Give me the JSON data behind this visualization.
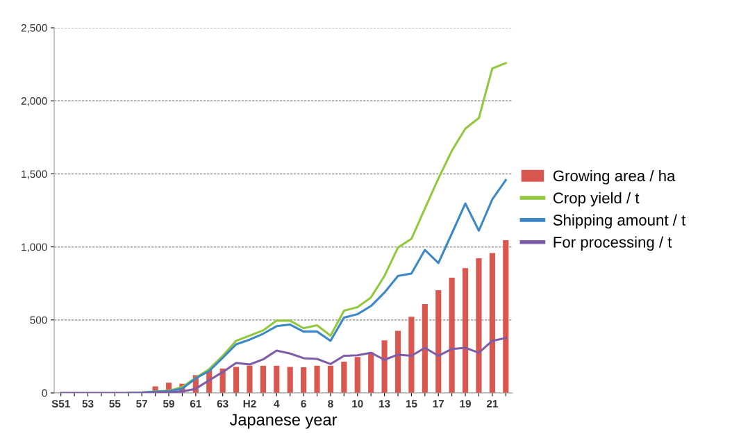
{
  "chart_data": {
    "type": "bar",
    "xlabel": "Japanese year",
    "categories": [
      "S51",
      null,
      "53",
      null,
      "55",
      null,
      "57",
      null,
      "59",
      null,
      "61",
      null,
      "63",
      null,
      "H2",
      null,
      "4",
      null,
      "6",
      null,
      "8",
      null,
      "10",
      null,
      "13",
      null,
      "15",
      null,
      "17",
      null,
      "19",
      null,
      "21",
      null
    ],
    "series": [
      {
        "name": "Growing area / ha",
        "color": "#d9574f",
        "values": [
          0,
          0,
          0,
          0,
          0,
          0,
          5,
          45,
          70,
          63,
          122,
          157,
          167,
          178,
          187,
          186,
          186,
          178,
          176,
          186,
          186,
          214,
          246,
          278,
          360,
          425,
          522,
          608,
          703,
          789,
          854,
          922,
          958,
          1046
        ]
      },
      {
        "name": "Crop yield / t",
        "type": "line",
        "color": "#92c83e",
        "values": [
          null,
          null,
          null,
          null,
          null,
          0,
          3,
          10,
          15,
          40,
          103,
          163,
          254,
          357,
          392,
          428,
          495,
          495,
          443,
          463,
          392,
          563,
          587,
          654,
          801,
          995,
          1055,
          1262,
          1468,
          1658,
          1810,
          1882,
          2222,
          2258
        ]
      },
      {
        "name": "Shipping amount / t",
        "type": "line",
        "color": "#3b87c8",
        "values": [
          null,
          null,
          null,
          null,
          null,
          0,
          2,
          8,
          12,
          30,
          100,
          150,
          240,
          333,
          365,
          405,
          457,
          468,
          420,
          420,
          357,
          516,
          539,
          595,
          687,
          801,
          817,
          979,
          889,
          1092,
          1297,
          1111,
          1325,
          1457
        ]
      },
      {
        "name": "For processing / t",
        "type": "line",
        "color": "#7e5ca8",
        "values": [
          0,
          0,
          0,
          0,
          0,
          0,
          0,
          3,
          5,
          10,
          29,
          87,
          143,
          206,
          195,
          230,
          290,
          270,
          238,
          233,
          198,
          254,
          258,
          275,
          227,
          262,
          254,
          309,
          254,
          301,
          309,
          275,
          357,
          376
        ]
      }
    ],
    "ylim": [
      0,
      2500
    ],
    "yticks": [
      {
        "value": 0,
        "label": "0"
      },
      {
        "value": 500,
        "label": "500"
      },
      {
        "value": 1000,
        "label": "1,000"
      },
      {
        "value": 1500,
        "label": "1,500"
      },
      {
        "value": 2000,
        "label": "2,000"
      },
      {
        "value": 2500,
        "label": "2,500"
      }
    ],
    "grid": "y",
    "legend": "right",
    "marker": "none",
    "line_style": "solid"
  }
}
